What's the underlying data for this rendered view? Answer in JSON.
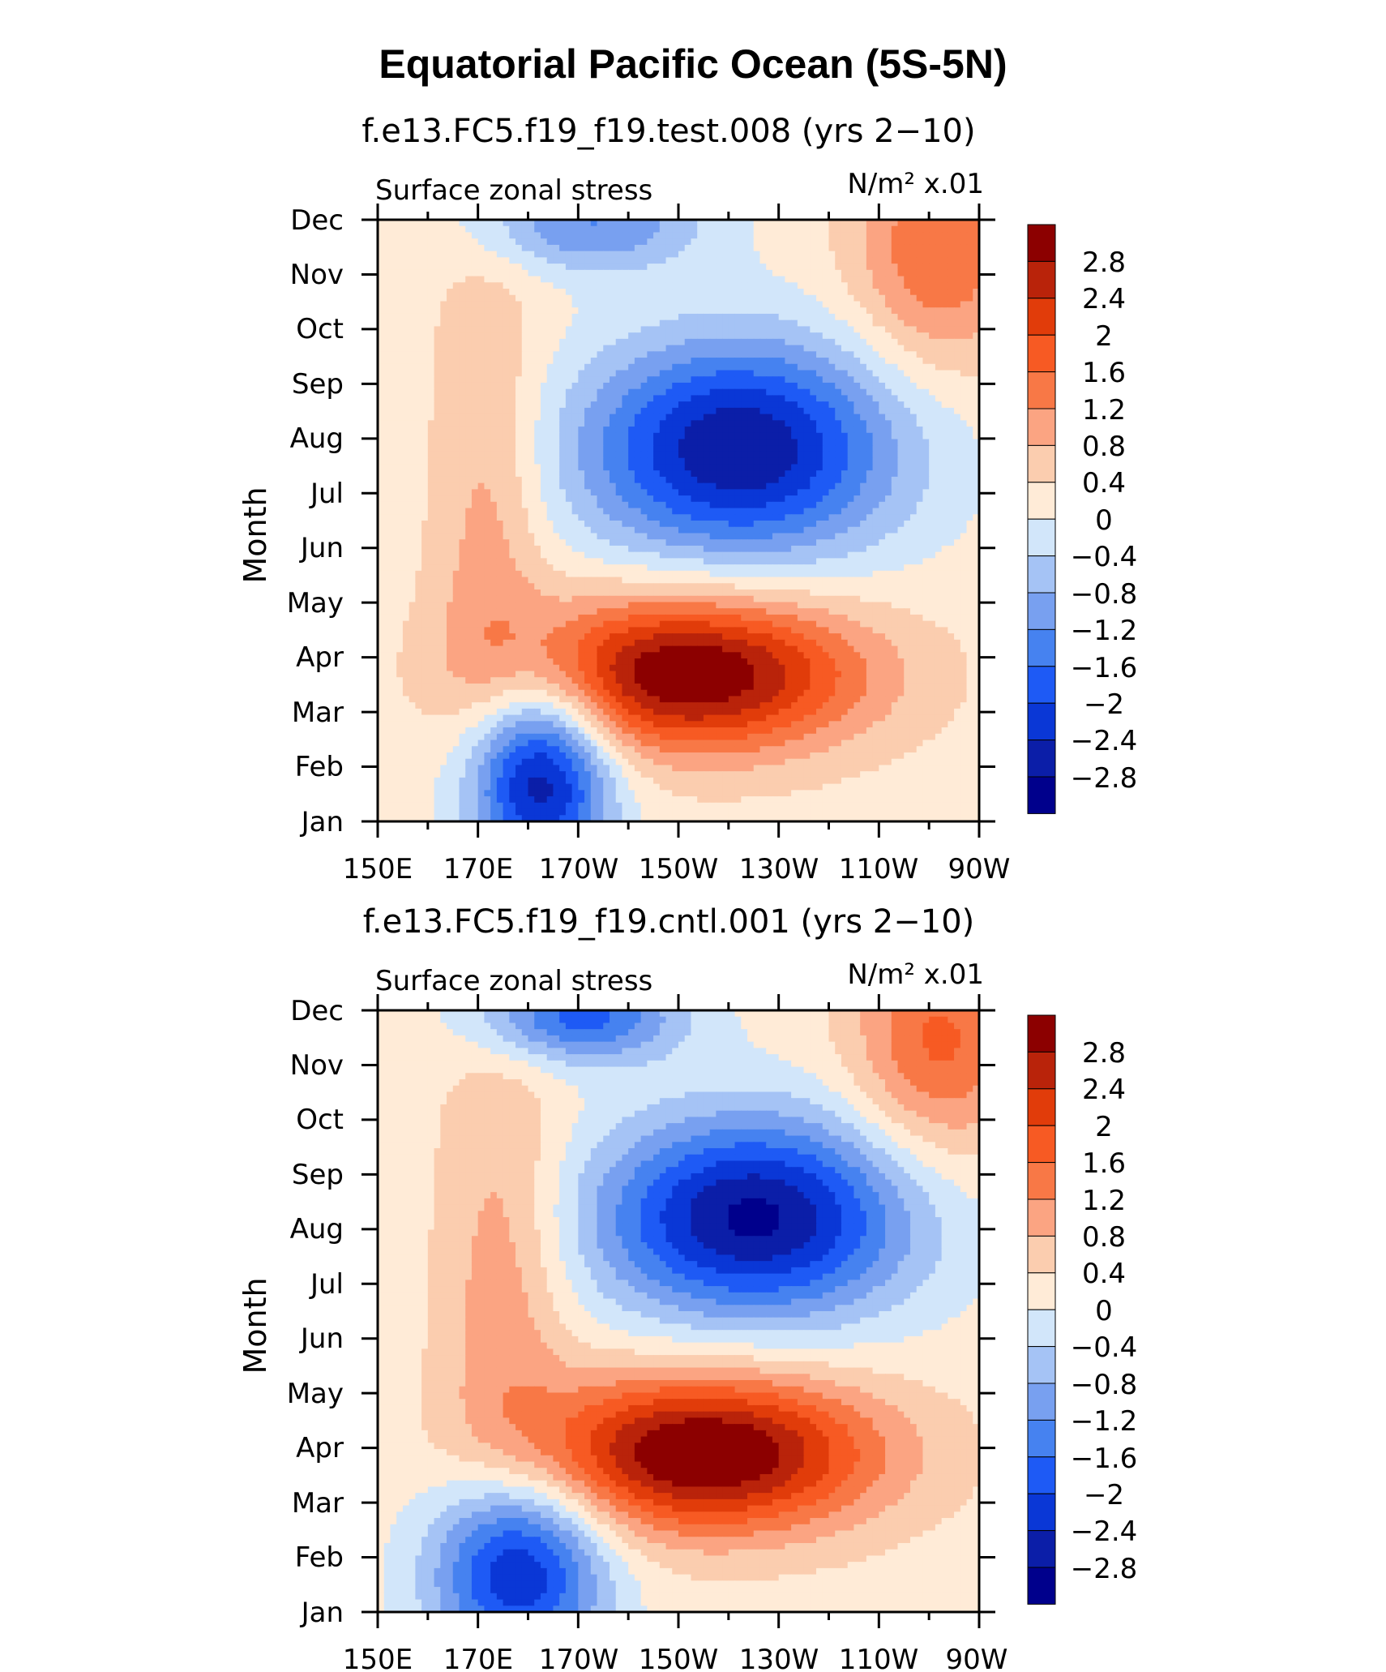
{
  "figure_title": "Equatorial Pacific Ocean (5S-5N)",
  "colors": {
    "levels": [
      "#00008c",
      "#0b1ea8",
      "#0a37d6",
      "#1e5af5",
      "#4682f0",
      "#78a0f0",
      "#a5c3f5",
      "#d2e6fa",
      "#ffebd7",
      "#fbcdaf",
      "#fba482",
      "#f87846",
      "#f75a23",
      "#e13c0a",
      "#b9230a",
      "#8c0000"
    ]
  },
  "chart_data": [
    {
      "type": "heatmap",
      "title": "f.e13.FC5.f19_f19.test.008 (yrs 2−10)",
      "left_label": "Surface zonal stress",
      "units_label": "N/m² x.01",
      "ylabel": "Month",
      "xlabel": "",
      "x_ticks": [
        "150E",
        "170E",
        "170W",
        "150W",
        "130W",
        "110W",
        "90W"
      ],
      "x_tick_values": [
        150,
        170,
        190,
        210,
        230,
        250,
        270
      ],
      "xlim": [
        150,
        270
      ],
      "y_ticks": [
        "Jan",
        "Feb",
        "Mar",
        "Apr",
        "May",
        "Jun",
        "Jul",
        "Aug",
        "Sep",
        "Oct",
        "Nov",
        "Dec"
      ],
      "ylim": [
        0,
        11
      ],
      "contour_levels": [
        -2.8,
        -2.4,
        -2,
        -1.6,
        -1.2,
        -0.8,
        -0.4,
        0,
        0.4,
        0.8,
        1.2,
        1.6,
        2,
        2.4,
        2.8
      ],
      "colorbar_labels": [
        "2.8",
        "2.4",
        "2",
        "1.6",
        "1.2",
        "0.8",
        "0.4",
        "0",
        "−0.4",
        "−0.8",
        "−1.2",
        "−1.6",
        "−2",
        "−2.4",
        "−2.8"
      ],
      "features": [
        {
          "x": 182,
          "y": 0.8,
          "value": -3.0,
          "sx": 10,
          "sy": 1.3
        },
        {
          "x": 212,
          "y": 2.7,
          "value": 3.1,
          "sx": 24,
          "sy": 1.0
        },
        {
          "x": 222,
          "y": 6.8,
          "value": -3.0,
          "sx": 22,
          "sy": 1.4
        },
        {
          "x": 172,
          "y": 5.6,
          "value": 0.8,
          "sx": 8,
          "sy": 3.5
        },
        {
          "x": 262,
          "y": 10.4,
          "value": 1.4,
          "sx": 12,
          "sy": 1.5
        },
        {
          "x": 192,
          "y": 10.9,
          "value": -1.4,
          "sx": 16,
          "sy": 0.6
        }
      ]
    },
    {
      "type": "heatmap",
      "title": "f.e13.FC5.f19_f19.cntl.001 (yrs 2−10)",
      "left_label": "Surface zonal stress",
      "units_label": "N/m² x.01",
      "ylabel": "Month",
      "xlabel": "",
      "x_ticks": [
        "150E",
        "170E",
        "170W",
        "150W",
        "130W",
        "110W",
        "90W"
      ],
      "x_tick_values": [
        150,
        170,
        190,
        210,
        230,
        250,
        270
      ],
      "xlim": [
        150,
        270
      ],
      "y_ticks": [
        "Jan",
        "Feb",
        "Mar",
        "Apr",
        "May",
        "Jun",
        "Jul",
        "Aug",
        "Sep",
        "Oct",
        "Nov",
        "Dec"
      ],
      "ylim": [
        0,
        11
      ],
      "contour_levels": [
        -2.8,
        -2.4,
        -2,
        -1.6,
        -1.2,
        -0.8,
        -0.4,
        0,
        0.4,
        0.8,
        1.2,
        1.6,
        2,
        2.4,
        2.8
      ],
      "colorbar_labels": [
        "2.8",
        "2.4",
        "2",
        "1.6",
        "1.2",
        "0.8",
        "0.4",
        "0",
        "−0.4",
        "−0.8",
        "−1.2",
        "−1.6",
        "−2",
        "−2.4",
        "−2.8"
      ],
      "features": [
        {
          "x": 178,
          "y": 0.8,
          "value": -2.7,
          "sx": 12,
          "sy": 1.3
        },
        {
          "x": 215,
          "y": 2.9,
          "value": 3.2,
          "sx": 24,
          "sy": 1.0
        },
        {
          "x": 225,
          "y": 7.2,
          "value": -3.1,
          "sx": 22,
          "sy": 1.3
        },
        {
          "x": 175,
          "y": 6.2,
          "value": 0.9,
          "sx": 9,
          "sy": 3.0
        },
        {
          "x": 262,
          "y": 10.4,
          "value": 1.5,
          "sx": 12,
          "sy": 1.5
        },
        {
          "x": 190,
          "y": 10.9,
          "value": -2.0,
          "sx": 14,
          "sy": 0.6
        }
      ]
    }
  ]
}
